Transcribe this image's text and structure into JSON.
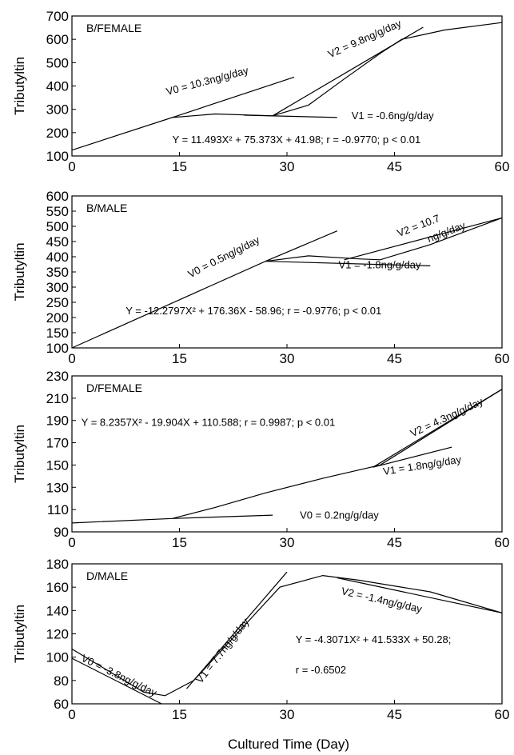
{
  "chart_data": [
    {
      "type": "line",
      "panel_label": "B/FEMALE",
      "ylabel": "Tributyltin",
      "xlim": [
        0,
        60
      ],
      "ylim": [
        100,
        700
      ],
      "xticks": [
        0,
        15,
        30,
        45,
        60
      ],
      "yticks": [
        100,
        200,
        300,
        400,
        500,
        600,
        700
      ],
      "series": [
        {
          "x": [
            0,
            14,
            20,
            28,
            33,
            38,
            43,
            46,
            52,
            60
          ],
          "y": [
            125,
            265,
            280,
            272,
            318,
            430,
            540,
            600,
            640,
            672
          ]
        },
        {
          "x": [
            14,
            31
          ],
          "y": [
            265,
            438
          ]
        },
        {
          "x": [
            28,
            49
          ],
          "y": [
            272,
            652
          ]
        },
        {
          "x": [
            24,
            37
          ],
          "y": [
            275,
            265
          ]
        }
      ],
      "annotations": [
        {
          "text": "V0 =  10.3ng/g/day",
          "x": 13.3,
          "y": 360,
          "angle": -15
        },
        {
          "text": "V2 = 9.8ng/g/day",
          "x": 36,
          "y": 520,
          "angle": -24
        },
        {
          "text": "V1 = -0.6ng/g/day",
          "x": 39,
          "y": 257,
          "angle": 0
        },
        {
          "text": "Y = 11.493X² + 75.373X + 41.98; r = -0.9770; p < 0.01",
          "x": 14,
          "y": 155,
          "angle": 0
        }
      ]
    },
    {
      "type": "line",
      "panel_label": "B/MALE",
      "ylabel": "Tributyltin",
      "xlim": [
        0,
        60
      ],
      "ylim": [
        100,
        600
      ],
      "xticks": [
        0,
        15,
        30,
        45,
        60
      ],
      "yticks": [
        100,
        150,
        200,
        250,
        300,
        350,
        400,
        450,
        500,
        550,
        600
      ],
      "series": [
        {
          "x": [
            0,
            27,
            33,
            40,
            43,
            50,
            60
          ],
          "y": [
            100,
            385,
            403,
            393,
            390,
            440,
            528
          ]
        },
        {
          "x": [
            27,
            37
          ],
          "y": [
            385,
            485
          ]
        },
        {
          "x": [
            27,
            50
          ],
          "y": [
            385,
            370
          ]
        },
        {
          "x": [
            38,
            60
          ],
          "y": [
            390,
            528
          ]
        }
      ],
      "annotations": [
        {
          "text": "V0 = 0.5ng/g/day",
          "x": 16.5,
          "y": 330,
          "angle": -27
        },
        {
          "text": "V1 = -1.8ng/g/day",
          "x": 37.2,
          "y": 362,
          "angle": 0
        },
        {
          "text": "V2 = 10.7",
          "x": 45.6,
          "y": 465,
          "angle": -21
        },
        {
          "text": "ng/g/day",
          "x": 49.8,
          "y": 447,
          "angle": -21
        },
        {
          "text": "Y = -12.2797X² + 176.36X - 58.96; r = -0.9776; p < 0.01",
          "x": 7.5,
          "y": 210,
          "angle": 0
        }
      ]
    },
    {
      "type": "line",
      "panel_label": "D/FEMALE",
      "ylabel": "Tributyltin",
      "xlim": [
        0,
        60
      ],
      "ylim": [
        90,
        230
      ],
      "xticks": [
        0,
        15,
        30,
        45,
        60
      ],
      "yticks": [
        90,
        110,
        130,
        150,
        170,
        190,
        210,
        230
      ],
      "series": [
        {
          "x": [
            0,
            14,
            20,
            27,
            35,
            43,
            50,
            60
          ],
          "y": [
            98,
            102,
            112,
            125,
            138,
            150,
            178,
            218
          ]
        },
        {
          "x": [
            14,
            28
          ],
          "y": [
            102,
            105
          ]
        },
        {
          "x": [
            42,
            53
          ],
          "y": [
            148,
            166
          ]
        },
        {
          "x": [
            42,
            60
          ],
          "y": [
            148,
            218
          ]
        }
      ],
      "annotations": [
        {
          "text": "V0 =  0.2ng/g/day",
          "x": 31.8,
          "y": 102,
          "angle": 0
        },
        {
          "text": "V1 = 1.8ng/g/day",
          "x": 43.5,
          "y": 141,
          "angle": -9
        },
        {
          "text": "V2 = 4.3ng/g/day",
          "x": 47.5,
          "y": 175,
          "angle": -25
        },
        {
          "text": "Y = 8.2357X² - 19.904X + 110.588; r = 0.9987; p < 0.01",
          "x": 1.3,
          "y": 185,
          "angle": 0
        }
      ]
    },
    {
      "type": "line",
      "panel_label": "D/MALE",
      "ylabel": "Tributyltin",
      "xlabel": "Cultured Time (Day)",
      "xlim": [
        0,
        60
      ],
      "ylim": [
        60,
        180
      ],
      "xticks": [
        0,
        15,
        30,
        45,
        60
      ],
      "yticks": [
        60,
        80,
        100,
        120,
        140,
        160,
        180
      ],
      "series": [
        {
          "x": [
            0,
            10,
            13,
            17,
            23,
            29,
            35,
            40,
            50,
            60
          ],
          "y": [
            107,
            70,
            67,
            80,
            120,
            160,
            170,
            166,
            156,
            138
          ]
        },
        {
          "x": [
            0,
            12.5
          ],
          "y": [
            99,
            60
          ]
        },
        {
          "x": [
            16,
            30
          ],
          "y": [
            73,
            173
          ]
        },
        {
          "x": [
            37,
            60
          ],
          "y": [
            168,
            138
          ]
        }
      ],
      "annotations": [
        {
          "text": "V0 =  -3.8ng/g/day",
          "x": 1.2,
          "y": 97,
          "angle": 26
        },
        {
          "text": "V1 = 7.7ng/g/day",
          "x": 18,
          "y": 77,
          "angle": -52
        },
        {
          "text": "V2 = -1.4ng/g/day",
          "x": 37.5,
          "y": 154,
          "angle": 13
        },
        {
          "text": "Y = -4.3071X² + 41.533X + 50.28;",
          "x": 31.2,
          "y": 112,
          "angle": 0
        },
        {
          "text": "r = -0.6502",
          "x": 31.2,
          "y": 86,
          "angle": 0
        }
      ]
    }
  ]
}
